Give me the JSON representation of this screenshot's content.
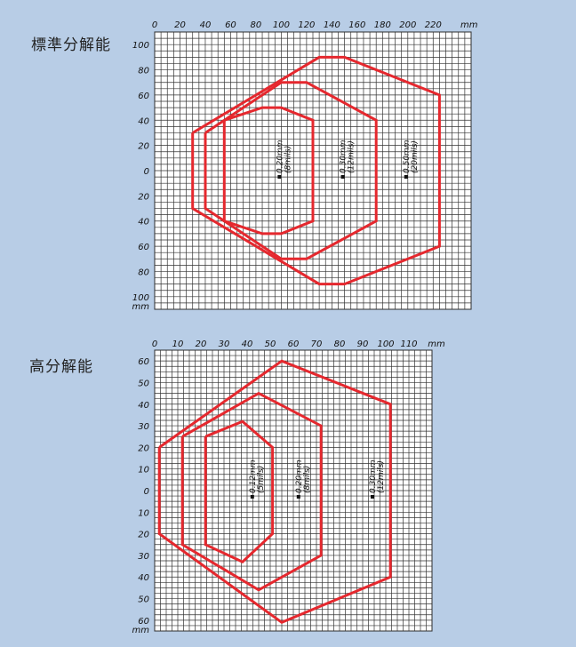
{
  "chart_data": [
    {
      "type": "line",
      "title": "標準分解能",
      "x_ticks": [
        "0",
        "20",
        "40",
        "60",
        "80",
        "100",
        "120",
        "140",
        "160",
        "180",
        "200",
        "220"
      ],
      "x_unit": "mm",
      "y_ticks": [
        "100",
        "80",
        "60",
        "40",
        "20",
        "0",
        "20",
        "40",
        "60",
        "80",
        "100"
      ],
      "y_unit": "mm",
      "xlim": [
        0,
        250
      ],
      "ylim": [
        -110,
        110
      ],
      "grid": true,
      "series": [
        {
          "name": "0.20mm\n(8mils)",
          "label_lines": [
            "0.20mm",
            "(8mils)"
          ],
          "label_at": [
            100,
            0
          ],
          "points": [
            [
              55,
              40
            ],
            [
              85,
              50
            ],
            [
              100,
              50
            ],
            [
              125,
              40
            ],
            [
              125,
              -40
            ],
            [
              100,
              -50
            ],
            [
              85,
              -50
            ],
            [
              55,
              -40
            ],
            [
              55,
              40
            ]
          ]
        },
        {
          "name": "0.30mm\n(12mils)",
          "label_lines": [
            "0.30mm",
            "(12mils)"
          ],
          "label_at": [
            150,
            0
          ],
          "points": [
            [
              40,
              30
            ],
            [
              100,
              70
            ],
            [
              120,
              70
            ],
            [
              175,
              40
            ],
            [
              175,
              -40
            ],
            [
              120,
              -70
            ],
            [
              100,
              -70
            ],
            [
              40,
              -30
            ],
            [
              40,
              30
            ]
          ]
        },
        {
          "name": "0.50mm\n(20mils)",
          "label_lines": [
            "0.50mm",
            "(20mils)"
          ],
          "label_at": [
            200,
            0
          ],
          "points": [
            [
              30,
              30
            ],
            [
              130,
              90
            ],
            [
              150,
              90
            ],
            [
              225,
              60
            ],
            [
              225,
              -60
            ],
            [
              150,
              -90
            ],
            [
              130,
              -90
            ],
            [
              30,
              -30
            ],
            [
              30,
              30
            ]
          ]
        }
      ]
    },
    {
      "type": "line",
      "title": "高分解能",
      "x_ticks": [
        "0",
        "10",
        "20",
        "30",
        "40",
        "50",
        "60",
        "70",
        "80",
        "90",
        "100",
        "110"
      ],
      "x_unit": "mm",
      "y_ticks": [
        "60",
        "50",
        "40",
        "30",
        "20",
        "10",
        "0",
        "10",
        "20",
        "30",
        "40",
        "50",
        "60"
      ],
      "y_unit": "mm",
      "xlim": [
        0,
        120
      ],
      "ylim": [
        -65,
        65
      ],
      "grid": true,
      "series": [
        {
          "name": "0.12mm\n(5mils)",
          "label_lines": [
            "0.12mm",
            "(5mils)"
          ],
          "label_at": [
            43,
            0
          ],
          "points": [
            [
              22,
              25
            ],
            [
              38,
              32
            ],
            [
              51,
              20
            ],
            [
              51,
              -20
            ],
            [
              38,
              -33
            ],
            [
              22,
              -25
            ],
            [
              22,
              25
            ]
          ]
        },
        {
          "name": "0.20mm\n(8mils)",
          "label_lines": [
            "0.20mm",
            "(8mils)"
          ],
          "label_at": [
            63,
            0
          ],
          "points": [
            [
              12,
              25
            ],
            [
              45,
              45
            ],
            [
              72,
              30
            ],
            [
              72,
              -30
            ],
            [
              45,
              -46
            ],
            [
              12,
              -25
            ],
            [
              12,
              25
            ]
          ]
        },
        {
          "name": "0.30mm\n(12mils)",
          "label_lines": [
            "0.30mm",
            "(12mils)"
          ],
          "label_at": [
            95,
            0
          ],
          "points": [
            [
              2,
              20
            ],
            [
              55,
              60
            ],
            [
              102,
              40
            ],
            [
              102,
              -40
            ],
            [
              55,
              -61
            ],
            [
              2,
              -20
            ],
            [
              2,
              20
            ]
          ]
        }
      ]
    }
  ]
}
